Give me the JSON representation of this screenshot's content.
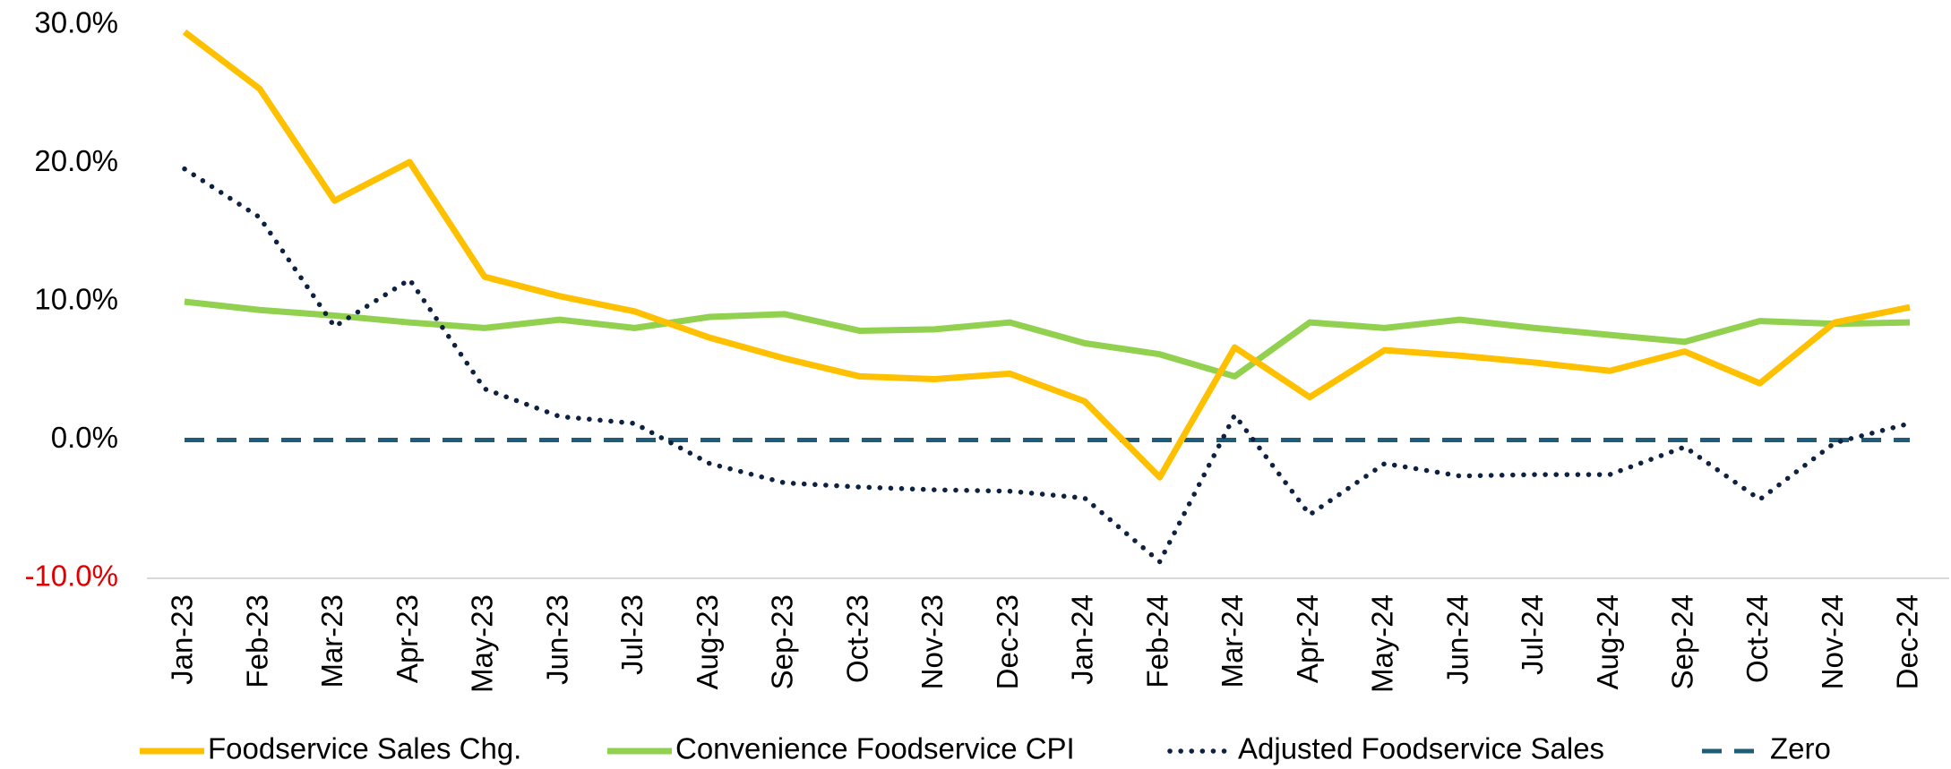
{
  "chart_data": {
    "type": "line",
    "categories": [
      "Jan-23",
      "Feb-23",
      "Mar-23",
      "Apr-23",
      "May-23",
      "Jun-23",
      "Jul-23",
      "Aug-23",
      "Sep-23",
      "Oct-23",
      "Nov-23",
      "Dec-23",
      "Jan-24",
      "Feb-24",
      "Mar-24",
      "Apr-24",
      "May-24",
      "Jun-24",
      "Jul-24",
      "Aug-24",
      "Sep-24",
      "Oct-24",
      "Nov-24",
      "Dec-24"
    ],
    "series": [
      {
        "name": "Foodservice Sales Chg.",
        "color": "#FFC000",
        "style": "solid",
        "values": [
          29.5,
          25.4,
          17.3,
          20.1,
          11.8,
          10.4,
          9.3,
          7.4,
          5.9,
          4.6,
          4.4,
          4.8,
          2.8,
          -2.7,
          6.7,
          3.1,
          6.5,
          6.1,
          5.6,
          5.0,
          6.4,
          4.1,
          8.5,
          9.6
        ]
      },
      {
        "name": "Convenience Foodservice CPI",
        "color": "#92D050",
        "style": "solid",
        "values": [
          10.0,
          9.4,
          9.0,
          8.5,
          8.1,
          8.7,
          8.1,
          8.9,
          9.1,
          7.9,
          8.0,
          8.5,
          7.0,
          6.2,
          4.6,
          8.5,
          8.1,
          8.7,
          8.1,
          7.6,
          7.1,
          8.6,
          8.4,
          8.5
        ]
      },
      {
        "name": "Adjusted Foodservice Sales",
        "color": "#0E2140",
        "style": "dotted",
        "values": [
          19.6,
          16.1,
          8.2,
          11.6,
          3.7,
          1.7,
          1.2,
          -1.7,
          -3.1,
          -3.4,
          -3.6,
          -3.7,
          -4.2,
          -8.8,
          1.8,
          -5.4,
          -1.7,
          -2.6,
          -2.5,
          -2.5,
          -0.5,
          -4.3,
          -0.2,
          1.2
        ]
      },
      {
        "name": "Zero",
        "color": "#1F5C7A",
        "style": "dashed",
        "values": [
          0,
          0,
          0,
          0,
          0,
          0,
          0,
          0,
          0,
          0,
          0,
          0,
          0,
          0,
          0,
          0,
          0,
          0,
          0,
          0,
          0,
          0,
          0,
          0
        ]
      }
    ],
    "ylim": [
      -10,
      30
    ],
    "yticks": [
      {
        "value": -10,
        "label": "-10.0%"
      },
      {
        "value": 0,
        "label": "0.0%"
      },
      {
        "value": 10,
        "label": "10.0%"
      },
      {
        "value": 20,
        "label": "20.0%"
      },
      {
        "value": 30,
        "label": "30.0%"
      }
    ],
    "negative_tick_color": "#E00000",
    "legend": "bottom"
  }
}
